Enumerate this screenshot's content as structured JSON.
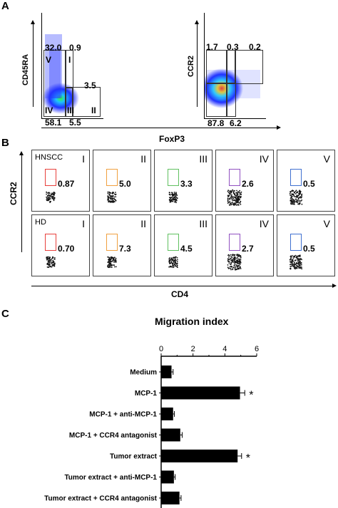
{
  "panelA": {
    "letter": "A",
    "plot1": {
      "ylabel": "CD45RA",
      "quadrants": [
        "32.0",
        "0.9",
        "3.5",
        "58.1",
        "5.5"
      ],
      "roman": [
        "V",
        "I",
        "IV",
        "III",
        "II"
      ]
    },
    "plot2": {
      "ylabel": "CCR2",
      "top": [
        "1.7",
        "0.3",
        "0.2"
      ],
      "bottom": [
        "87.8",
        "6.2"
      ]
    },
    "xlabel": "FoxP3"
  },
  "panelB": {
    "letter": "B",
    "ylabel": "CCR2",
    "xlabel": "CD4",
    "rows": [
      {
        "group": "HNSCC",
        "cells": [
          {
            "roman": "I",
            "value": "0.87",
            "color": "#e8403c"
          },
          {
            "roman": "II",
            "value": "5.0",
            "color": "#f0a040"
          },
          {
            "roman": "III",
            "value": "3.3",
            "color": "#60c060"
          },
          {
            "roman": "IV",
            "value": "2.6",
            "color": "#9050c0"
          },
          {
            "roman": "V",
            "value": "0.5",
            "color": "#4070d0"
          }
        ]
      },
      {
        "group": "HD",
        "cells": [
          {
            "roman": "I",
            "value": "0.70",
            "color": "#e8403c"
          },
          {
            "roman": "II",
            "value": "7.3",
            "color": "#f0a040"
          },
          {
            "roman": "III",
            "value": "4.5",
            "color": "#60c060"
          },
          {
            "roman": "IV",
            "value": "2.7",
            "color": "#9050c0"
          },
          {
            "roman": "V",
            "value": "0.5",
            "color": "#4070d0"
          }
        ]
      }
    ]
  },
  "panelC": {
    "letter": "C"
  },
  "chart_data": {
    "type": "bar",
    "title": "Migration index",
    "orientation": "horizontal",
    "categories": [
      "Medium",
      "MCP-1",
      "MCP-1 + anti-MCP-1",
      "MCP-1 + CCR4 antagonist",
      "Tumor extract",
      "Tumor extract + anti-MCP-1",
      "Tumor extract + CCR4 antagonist"
    ],
    "values": [
      0.65,
      4.95,
      0.75,
      1.2,
      4.8,
      0.8,
      1.15
    ],
    "errors": [
      0.1,
      0.3,
      0.08,
      0.12,
      0.25,
      0.08,
      0.1
    ],
    "significance": [
      "",
      "*",
      "",
      "",
      "*",
      "",
      ""
    ],
    "xlim": [
      0,
      6
    ],
    "xticks": [
      "0",
      "2",
      "4",
      "6"
    ]
  }
}
